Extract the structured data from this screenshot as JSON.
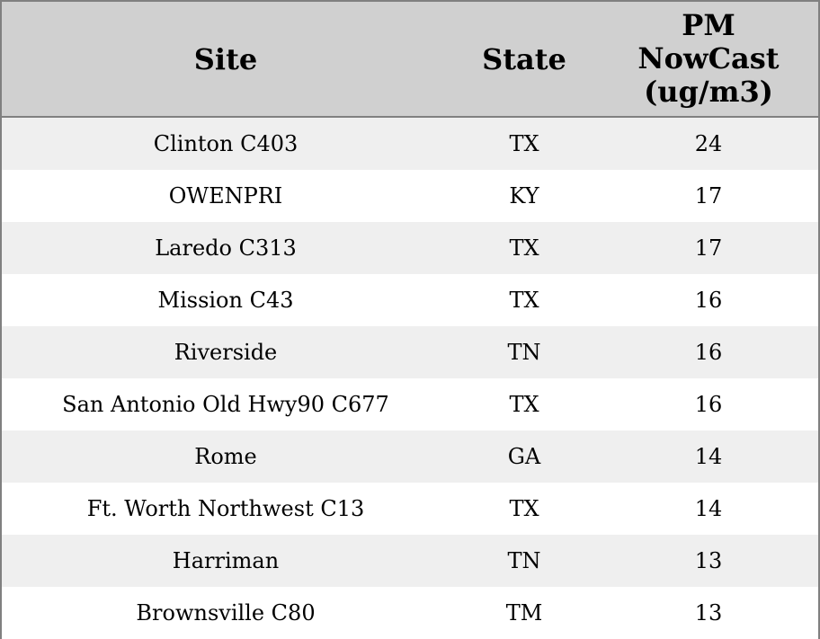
{
  "table": {
    "header": [
      "Site",
      "State",
      "PM NowCast (ug/m3)"
    ],
    "rows": [
      [
        "Clinton C403",
        "TX",
        24
      ],
      [
        "OWENPRI",
        "KY",
        17
      ],
      [
        "Laredo C313",
        "TX",
        17
      ],
      [
        "Mission C43",
        "TX",
        16
      ],
      [
        "Riverside",
        "TN",
        16
      ],
      [
        "San Antonio Old Hwy90 C677",
        "TX",
        16
      ],
      [
        "Rome",
        "GA",
        14
      ],
      [
        "Ft. Worth Northwest C13",
        "TX",
        14
      ],
      [
        "Harriman",
        "TN",
        13
      ],
      [
        "Brownsville C80",
        "TM",
        13
      ]
    ]
  }
}
